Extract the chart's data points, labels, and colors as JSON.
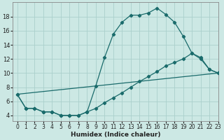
{
  "xlabel": "Humidex (Indice chaleur)",
  "background_color": "#cce8e4",
  "grid_color": "#aacfcc",
  "line_color": "#1a6b6b",
  "line1_x": [
    0,
    1,
    2,
    3,
    4,
    5,
    6,
    7,
    8,
    9,
    10,
    11,
    12,
    13,
    14,
    15,
    16,
    17,
    18,
    19,
    20,
    21,
    22,
    23
  ],
  "line1_y": [
    7,
    5,
    5,
    4.5,
    4.5,
    4,
    4,
    4,
    4.5,
    8.2,
    12.2,
    15.5,
    17.2,
    18.2,
    18.2,
    18.5,
    19.2,
    18.3,
    17.2,
    15.2,
    12.8,
    12.2,
    10.5,
    10
  ],
  "line2_x": [
    0,
    1,
    2,
    3,
    4,
    5,
    6,
    7,
    8,
    9,
    10,
    11,
    12,
    13,
    14,
    15,
    16,
    17,
    18,
    19,
    20,
    21,
    22,
    23
  ],
  "line2_y": [
    7,
    5,
    5,
    4.5,
    4.5,
    4,
    4,
    4,
    4.5,
    5.0,
    5.8,
    6.5,
    7.2,
    8.0,
    8.8,
    9.5,
    10.2,
    11.0,
    11.5,
    12.0,
    12.8,
    12.0,
    10.5,
    10
  ],
  "line3_x": [
    0,
    23
  ],
  "line3_y": [
    7,
    10
  ],
  "xlim": [
    -0.5,
    23
  ],
  "ylim": [
    3.2,
    20
  ],
  "yticks": [
    4,
    6,
    8,
    10,
    12,
    14,
    16,
    18
  ],
  "xticks": [
    0,
    1,
    2,
    3,
    4,
    5,
    6,
    7,
    8,
    9,
    10,
    11,
    12,
    13,
    14,
    15,
    16,
    17,
    18,
    19,
    20,
    21,
    22,
    23
  ],
  "tick_fontsize": 5.5,
  "xlabel_fontsize": 6.5
}
